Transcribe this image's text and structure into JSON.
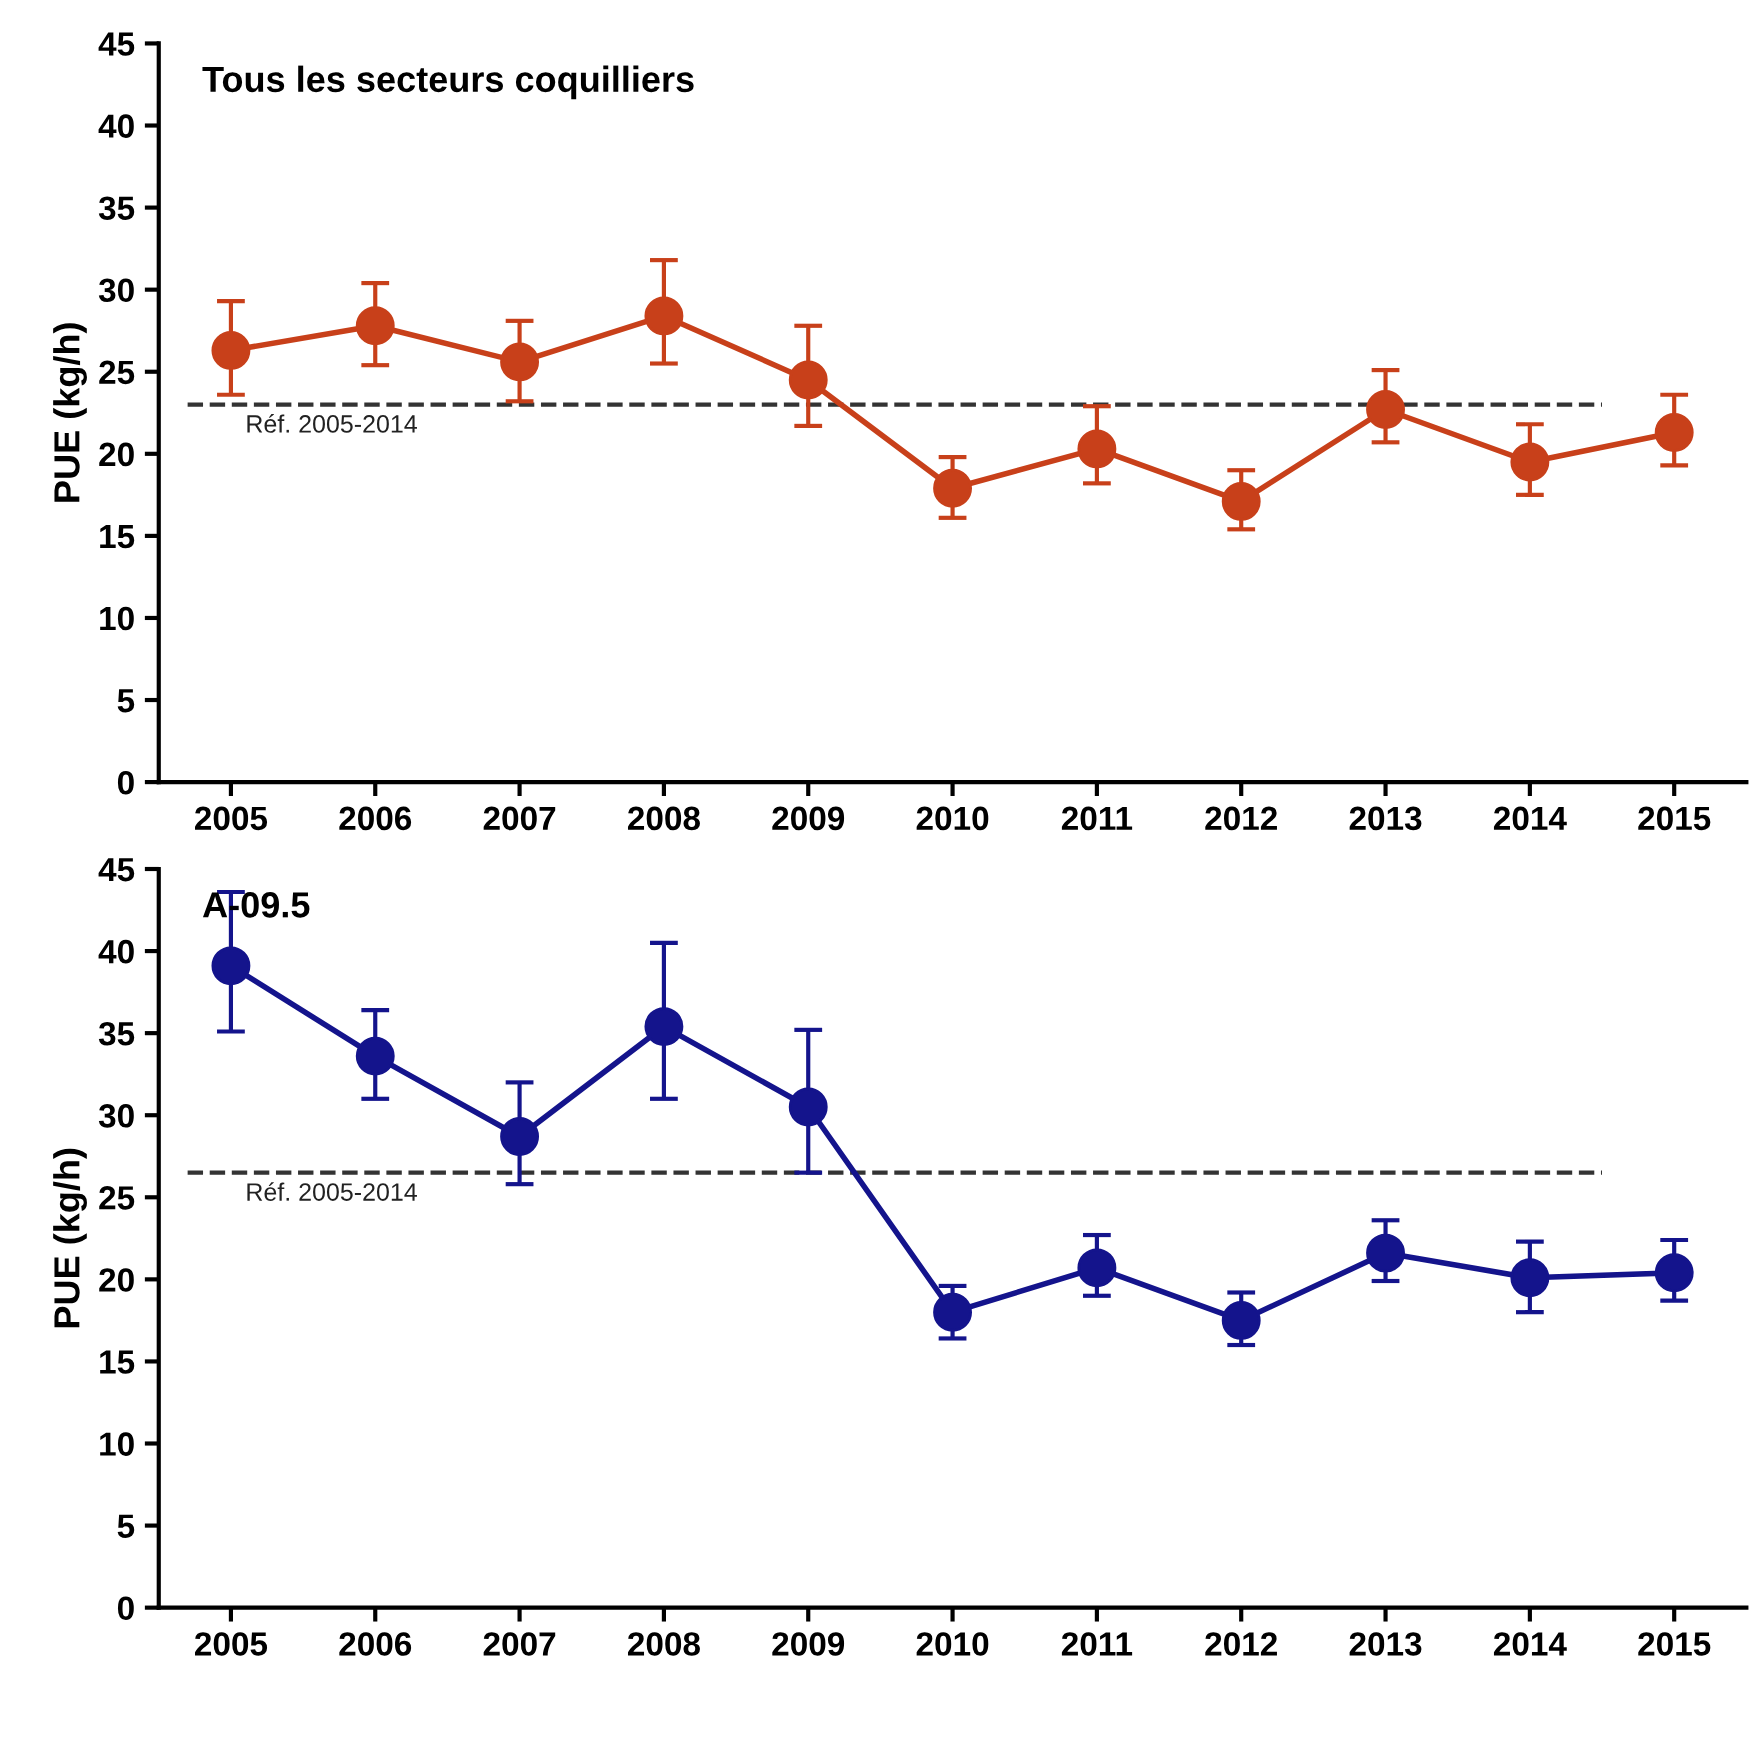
{
  "chart_data": [
    {
      "type": "line",
      "title": "Tous les secteurs coquilliers",
      "ylabel": "PUE (kg/h)",
      "categories": [
        "2005",
        "2006",
        "2007",
        "2008",
        "2009",
        "2010",
        "2011",
        "2012",
        "2013",
        "2014",
        "2015"
      ],
      "series": [
        {
          "color": "#c8401a",
          "values": [
            26.3,
            27.8,
            25.6,
            28.4,
            24.5,
            17.9,
            20.3,
            17.1,
            22.7,
            19.5,
            21.3
          ],
          "errors": [
            [
              23.6,
              29.3
            ],
            [
              25.4,
              30.4
            ],
            [
              23.2,
              28.1
            ],
            [
              25.5,
              31.8
            ],
            [
              21.7,
              27.8
            ],
            [
              16.1,
              19.8
            ],
            [
              18.2,
              22.9
            ],
            [
              15.4,
              19.0
            ],
            [
              20.7,
              25.1
            ],
            [
              17.5,
              21.8
            ],
            [
              19.3,
              23.6
            ]
          ]
        }
      ],
      "ylim": [
        0,
        45
      ],
      "yticks": [
        0,
        5,
        10,
        15,
        20,
        25,
        30,
        35,
        40,
        45
      ],
      "ref_lines": [
        {
          "axis": "y",
          "value": 23,
          "label": "Réf. 2005-2014",
          "color": "#333333",
          "line_style": "dashed"
        }
      ],
      "marker": "circle",
      "line_style": "solid",
      "grid": false,
      "legend": false
    },
    {
      "type": "line",
      "title": "A-09.5",
      "ylabel": "PUE (kg/h)",
      "categories": [
        "2005",
        "2006",
        "2007",
        "2008",
        "2009",
        "2010",
        "2011",
        "2012",
        "2013",
        "2014",
        "2015"
      ],
      "series": [
        {
          "color": "#14148c",
          "values": [
            39.1,
            33.6,
            28.7,
            35.4,
            30.5,
            18.0,
            20.7,
            17.5,
            21.6,
            20.1,
            20.4
          ],
          "errors": [
            [
              35.1,
              43.6
            ],
            [
              31.0,
              36.4
            ],
            [
              25.8,
              32.0
            ],
            [
              31.0,
              40.5
            ],
            [
              26.5,
              35.2
            ],
            [
              16.4,
              19.6
            ],
            [
              19.0,
              22.7
            ],
            [
              16.0,
              19.2
            ],
            [
              19.9,
              23.6
            ],
            [
              18.0,
              22.3
            ],
            [
              18.7,
              22.4
            ]
          ]
        }
      ],
      "ylim": [
        0,
        45
      ],
      "yticks": [
        0,
        5,
        10,
        15,
        20,
        25,
        30,
        35,
        40,
        45
      ],
      "ref_lines": [
        {
          "axis": "y",
          "value": 26.5,
          "label": "Réf. 2005-2014",
          "color": "#333333",
          "line_style": "dashed"
        }
      ],
      "marker": "circle",
      "line_style": "solid",
      "grid": false,
      "legend": false
    }
  ]
}
